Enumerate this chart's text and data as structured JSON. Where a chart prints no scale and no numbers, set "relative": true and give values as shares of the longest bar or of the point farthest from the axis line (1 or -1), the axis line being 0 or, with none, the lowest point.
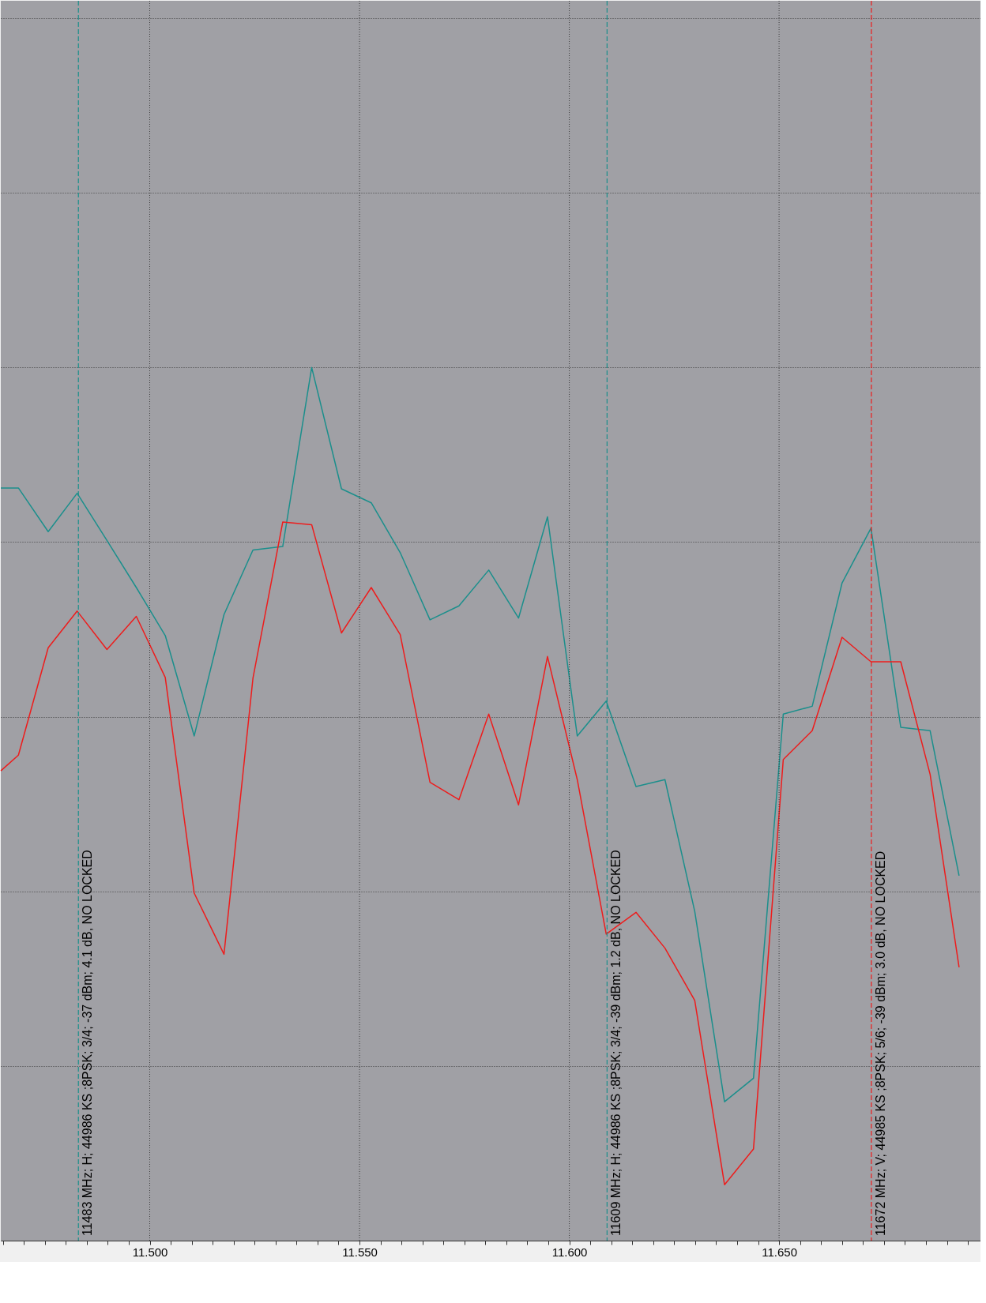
{
  "chart_data": {
    "type": "line",
    "relative": true,
    "grid": true,
    "line_style": "solid",
    "marker": "none",
    "x": [
      11.4645,
      11.4687,
      11.4758,
      11.4827,
      11.4898,
      11.4968,
      11.5037,
      11.5106,
      11.5177,
      11.5246,
      11.5317,
      11.5386,
      11.5457,
      11.5528,
      11.5597,
      11.5668,
      11.5737,
      11.5808,
      11.5879,
      11.5948,
      11.6019,
      11.6088,
      11.6159,
      11.6228,
      11.6299,
      11.637,
      11.6439,
      11.651,
      11.6579,
      11.665,
      11.6719,
      11.679,
      11.686,
      11.6929
    ],
    "xlim": [
      11.4645,
      11.698
    ],
    "xticks": [
      {
        "value": 11.465,
        "label": null
      },
      {
        "value": 11.47,
        "label": null
      },
      {
        "value": 11.475,
        "label": null
      },
      {
        "value": 11.48,
        "label": null
      },
      {
        "value": 11.485,
        "label": null
      },
      {
        "value": 11.49,
        "label": null
      },
      {
        "value": 11.495,
        "label": null
      },
      {
        "value": 11.5,
        "label": "11.500"
      },
      {
        "value": 11.505,
        "label": null
      },
      {
        "value": 11.51,
        "label": null
      },
      {
        "value": 11.515,
        "label": null
      },
      {
        "value": 11.52,
        "label": null
      },
      {
        "value": 11.525,
        "label": null
      },
      {
        "value": 11.53,
        "label": null
      },
      {
        "value": 11.535,
        "label": null
      },
      {
        "value": 11.54,
        "label": null
      },
      {
        "value": 11.545,
        "label": null
      },
      {
        "value": 11.55,
        "label": "11.550"
      },
      {
        "value": 11.555,
        "label": null
      },
      {
        "value": 11.56,
        "label": null
      },
      {
        "value": 11.565,
        "label": null
      },
      {
        "value": 11.57,
        "label": null
      },
      {
        "value": 11.575,
        "label": null
      },
      {
        "value": 11.58,
        "label": null
      },
      {
        "value": 11.585,
        "label": null
      },
      {
        "value": 11.59,
        "label": null
      },
      {
        "value": 11.595,
        "label": null
      },
      {
        "value": 11.6,
        "label": "11.600"
      },
      {
        "value": 11.605,
        "label": null
      },
      {
        "value": 11.61,
        "label": null
      },
      {
        "value": 11.615,
        "label": null
      },
      {
        "value": 11.62,
        "label": null
      },
      {
        "value": 11.625,
        "label": null
      },
      {
        "value": 11.63,
        "label": null
      },
      {
        "value": 11.635,
        "label": null
      },
      {
        "value": 11.64,
        "label": null
      },
      {
        "value": 11.645,
        "label": null
      },
      {
        "value": 11.65,
        "label": "11.650"
      },
      {
        "value": 11.655,
        "label": null
      },
      {
        "value": 11.66,
        "label": null
      },
      {
        "value": 11.665,
        "label": null
      },
      {
        "value": 11.67,
        "label": null
      },
      {
        "value": 11.675,
        "label": null
      },
      {
        "value": 11.68,
        "label": null
      },
      {
        "value": 11.685,
        "label": null
      },
      {
        "value": 11.69,
        "label": null
      },
      {
        "value": 11.695,
        "label": null
      }
    ],
    "series": [
      {
        "color": "#1b8f8c",
        "values": [
          0.862,
          0.862,
          0.812,
          0.856,
          0.802,
          0.748,
          0.693,
          0.578,
          0.717,
          0.791,
          0.795,
          1.0,
          0.861,
          0.845,
          0.788,
          0.711,
          0.727,
          0.768,
          0.713,
          0.829,
          0.578,
          0.618,
          0.52,
          0.528,
          0.377,
          0.159,
          0.186,
          0.603,
          0.612,
          0.753,
          0.816,
          0.588,
          0.584,
          0.418
        ]
      },
      {
        "color": "#ee1c1c",
        "values": [
          0.538,
          0.556,
          0.679,
          0.721,
          0.677,
          0.715,
          0.645,
          0.398,
          0.328,
          0.644,
          0.823,
          0.82,
          0.696,
          0.748,
          0.694,
          0.525,
          0.505,
          0.603,
          0.499,
          0.669,
          0.528,
          0.351,
          0.376,
          0.335,
          0.275,
          0.064,
          0.105,
          0.551,
          0.584,
          0.691,
          0.663,
          0.663,
          0.534,
          0.313
        ]
      }
    ],
    "ref_lines": [
      {
        "axis": "x",
        "value": 11.483,
        "label": "11483 MHz; H; 44986 KS ;8PSK; 3/4; -37 dBm; 4.1 dB, NO LOCKED",
        "color": "#1b8f8c",
        "line_style": "dashed"
      },
      {
        "axis": "x",
        "value": 11.609,
        "label": "11609 MHz; H; 44986 KS ;8PSK; 3/4; -39 dBm; 1.2 dB, NO LOCKED",
        "color": "#1b8f8c",
        "line_style": "dashed"
      },
      {
        "axis": "x",
        "value": 11.672,
        "label": "11672 MHz; V; 44985 KS ;8PSK; 5/6; -39 dBm; 3.0 dB, NO LOCKED",
        "color": "#ee1c1c",
        "line_style": "dashed"
      }
    ]
  }
}
